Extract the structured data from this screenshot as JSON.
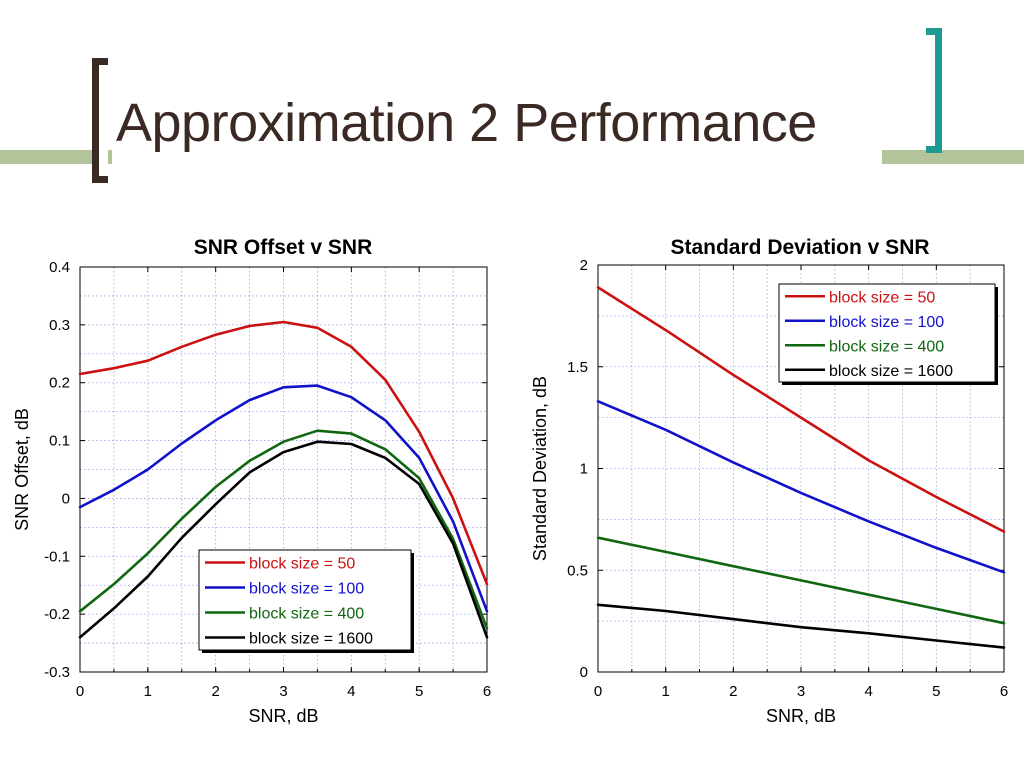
{
  "slide": {
    "title": "Approximation 2 Performance",
    "colors": {
      "title_text": "#3b2a24",
      "band": "#b4c49a",
      "left_bracket": "#3b2a24",
      "right_bracket": "#1e9a95"
    }
  },
  "chart_data": [
    {
      "id": "snr-offset",
      "type": "line",
      "title": "SNR Offset v SNR",
      "xlabel": "SNR, dB",
      "ylabel": "SNR Offset, dB",
      "xlim": [
        0,
        6
      ],
      "ylim": [
        -0.3,
        0.4
      ],
      "xticks": [
        0,
        1,
        2,
        3,
        4,
        5,
        6
      ],
      "xtick_labels": [
        "0",
        "1",
        "2",
        "3",
        "4",
        "5",
        "6"
      ],
      "yticks": [
        -0.3,
        -0.2,
        -0.1,
        0,
        0.1,
        0.2,
        0.3,
        0.4
      ],
      "ytick_labels": [
        "-0.3",
        "-0.2",
        "-0.1",
        "0",
        "0.1",
        "0.2",
        "0.3",
        "0.4"
      ],
      "grid": true,
      "legend_position": "bottom-right",
      "x": [
        0,
        0.5,
        1,
        1.5,
        2,
        2.5,
        3,
        3.5,
        4,
        4.5,
        5,
        5.5,
        6
      ],
      "series": [
        {
          "name": "block size = 50",
          "color": "#cc1111",
          "values": [
            0.215,
            0.225,
            0.238,
            0.262,
            0.283,
            0.298,
            0.305,
            0.295,
            0.262,
            0.205,
            0.115,
            0.0,
            -0.148
          ]
        },
        {
          "name": "block size = 100",
          "color": "#1111cc",
          "values": [
            -0.015,
            0.015,
            0.05,
            0.095,
            0.135,
            0.17,
            0.192,
            0.195,
            0.175,
            0.135,
            0.07,
            -0.04,
            -0.195
          ]
        },
        {
          "name": "block size = 400",
          "color": "#116611",
          "values": [
            -0.195,
            -0.148,
            -0.095,
            -0.035,
            0.02,
            0.065,
            0.098,
            0.117,
            0.112,
            0.085,
            0.035,
            -0.07,
            -0.225
          ]
        },
        {
          "name": "block size = 1600",
          "color": "#000000",
          "values": [
            -0.24,
            -0.19,
            -0.135,
            -0.068,
            -0.01,
            0.045,
            0.08,
            0.098,
            0.094,
            0.07,
            0.025,
            -0.078,
            -0.24
          ]
        }
      ]
    },
    {
      "id": "std-dev",
      "type": "line",
      "title": "Standard Deviation v SNR",
      "xlabel": "SNR, dB",
      "ylabel": "Standard Deviation, dB",
      "xlim": [
        0,
        6
      ],
      "ylim": [
        0,
        2
      ],
      "xticks": [
        0,
        1,
        2,
        3,
        4,
        5,
        6
      ],
      "xtick_labels": [
        "0",
        "1",
        "2",
        "3",
        "4",
        "5",
        "6"
      ],
      "yticks": [
        0,
        0.5,
        1,
        1.5,
        2
      ],
      "ytick_labels": [
        "0",
        "0.5",
        "1",
        "1.5",
        "2"
      ],
      "grid": true,
      "legend_position": "top-right",
      "x": [
        0,
        1,
        2,
        3,
        4,
        5,
        6
      ],
      "series": [
        {
          "name": "block size = 50",
          "color": "#cc1111",
          "values": [
            1.89,
            1.68,
            1.46,
            1.25,
            1.04,
            0.86,
            0.69
          ]
        },
        {
          "name": "block size = 100",
          "color": "#1111cc",
          "values": [
            1.33,
            1.19,
            1.03,
            0.88,
            0.74,
            0.61,
            0.49
          ]
        },
        {
          "name": "block size = 400",
          "color": "#116611",
          "values": [
            0.66,
            0.59,
            0.52,
            0.45,
            0.38,
            0.31,
            0.24
          ]
        },
        {
          "name": "block size = 1600",
          "color": "#000000",
          "values": [
            0.33,
            0.3,
            0.26,
            0.22,
            0.19,
            0.155,
            0.12
          ]
        }
      ]
    }
  ]
}
